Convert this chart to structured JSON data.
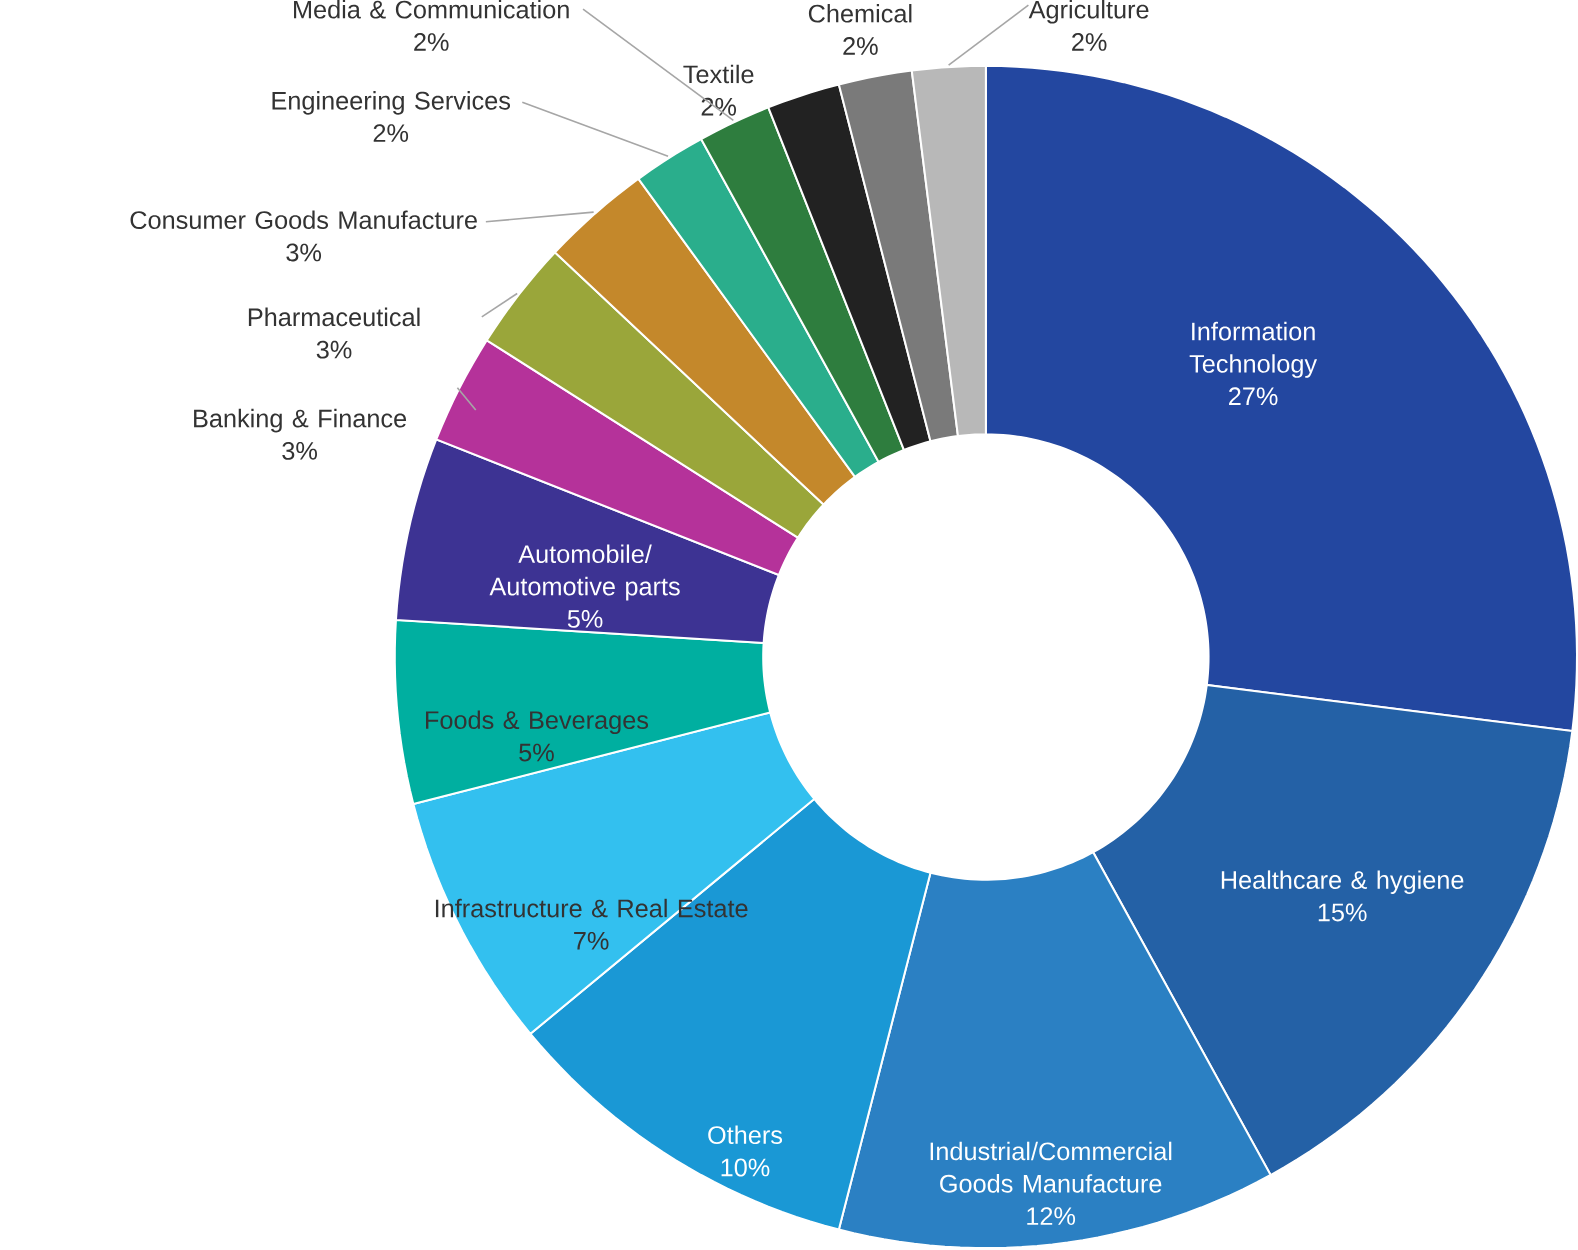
{
  "chart_data": {
    "type": "donut",
    "categories": [
      "Information Technology",
      "Healthcare & hygiene",
      "Industrial/Commercial Goods Manufacture",
      "Others",
      "Infrastructure & Real Estate",
      "Foods & Beverages",
      "Automobile/ Automotive parts",
      "Banking & Finance",
      "Pharmaceutical",
      "Consumer Goods Manufacture",
      "Engineering Services",
      "Media & Communication",
      "Textile",
      "Chemical",
      "Agriculture"
    ],
    "values": [
      27,
      15,
      12,
      10,
      7,
      5,
      5,
      3,
      3,
      3,
      2,
      2,
      2,
      2,
      2
    ],
    "value_labels": [
      "27%",
      "15%",
      "12%",
      "10%",
      "7%",
      "5%",
      "5%",
      "3%",
      "3%",
      "3%",
      "2%",
      "2%",
      "2%",
      "2%",
      "2%"
    ],
    "colors": [
      "#2347a0",
      "#2461a6",
      "#2b80c3",
      "#1a98d5",
      "#33c0ef",
      "#00afa0",
      "#3d3393",
      "#b5329a",
      "#9aa63a",
      "#c4882b",
      "#2aae8c",
      "#2e7d3e",
      "#222222",
      "#7a7a7a",
      "#b8b8b8"
    ]
  }
}
